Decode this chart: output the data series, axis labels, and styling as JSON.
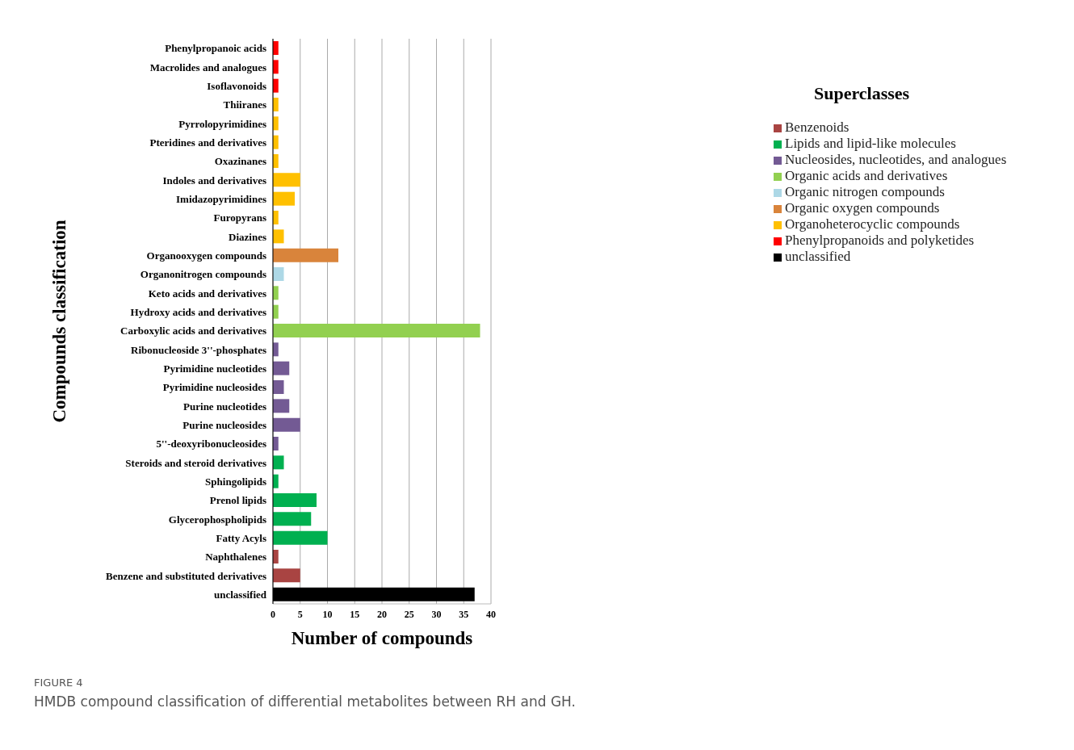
{
  "chart_data": {
    "type": "bar",
    "orientation": "horizontal",
    "stacked": true,
    "xlabel": "Number of compounds",
    "ylabel": "Compounds classification",
    "legend_title": "Superclasses",
    "categories": [
      "Phenylpropanoic acids",
      "Macrolides and analogues",
      "Isoflavonoids",
      "Thiiranes",
      "Pyrrolopyrimidines",
      "Pteridines and derivatives",
      "Oxazinanes",
      "Indoles and derivatives",
      "Imidazopyrimidines",
      "Furopyrans",
      "Diazines",
      "Organooxygen compounds",
      "Organonitrogen compounds",
      "Keto acids and derivatives",
      "Hydroxy acids and derivatives",
      "Carboxylic acids and derivatives",
      "Ribonucleoside 3''-phosphates",
      "Pyrimidine nucleotides",
      "Pyrimidine nucleosides",
      "Purine nucleotides",
      "Purine nucleosides",
      "5''-deoxyribonucleosides",
      "Steroids and steroid derivatives",
      "Sphingolipids",
      "Prenol lipids",
      "Glycerophospholipids",
      "Fatty Acyls",
      "Naphthalenes",
      "Benzene and substituted derivatives",
      "unclassified"
    ],
    "series": [
      {
        "name": "Phenylpropanoids and polyketides",
        "color": "#ff0000",
        "values": [
          1,
          1,
          1,
          null,
          null,
          null,
          null,
          null,
          null,
          null,
          null,
          null,
          null,
          null,
          null,
          null,
          null,
          null,
          null,
          null,
          null,
          null,
          null,
          null,
          null,
          null,
          null,
          null,
          null,
          null
        ]
      },
      {
        "name": "Organoheterocyclic compounds",
        "color": "#ffc000",
        "values": [
          null,
          null,
          null,
          1,
          1,
          1,
          1,
          5,
          4,
          1,
          2,
          null,
          null,
          null,
          null,
          null,
          null,
          null,
          null,
          null,
          null,
          null,
          null,
          null,
          null,
          null,
          null,
          null,
          null,
          null
        ]
      },
      {
        "name": "Organic acids and derivatives",
        "color": "#92d050",
        "values": [
          null,
          null,
          null,
          null,
          null,
          null,
          null,
          null,
          null,
          null,
          null,
          null,
          null,
          1,
          1,
          38,
          null,
          null,
          null,
          null,
          null,
          null,
          null,
          null,
          null,
          null,
          null,
          null,
          null,
          null
        ]
      },
      {
        "name": "Organic oxygen compounds",
        "color": "#d9843b",
        "values": [
          null,
          null,
          null,
          null,
          null,
          null,
          null,
          null,
          null,
          null,
          null,
          12,
          null,
          null,
          null,
          null,
          null,
          null,
          null,
          null,
          null,
          null,
          null,
          null,
          null,
          null,
          null,
          null,
          null,
          null
        ]
      },
      {
        "name": "Organic nitrogen compounds",
        "color": "#add8e6",
        "values": [
          null,
          null,
          null,
          null,
          null,
          null,
          null,
          null,
          null,
          null,
          null,
          null,
          2,
          null,
          null,
          null,
          null,
          null,
          null,
          null,
          null,
          null,
          null,
          null,
          null,
          null,
          null,
          null,
          null,
          null
        ]
      },
      {
        "name": "Nucleosides, nucleotides, and analogues",
        "color": "#735a94",
        "values": [
          null,
          null,
          null,
          null,
          null,
          null,
          null,
          null,
          null,
          null,
          null,
          null,
          null,
          null,
          null,
          null,
          1,
          3,
          2,
          3,
          5,
          1,
          null,
          null,
          null,
          null,
          null,
          null,
          null,
          null
        ]
      },
      {
        "name": "Lipids and lipid-like molecules",
        "color": "#00b050",
        "values": [
          null,
          null,
          null,
          null,
          null,
          null,
          null,
          null,
          null,
          null,
          null,
          null,
          null,
          null,
          null,
          null,
          null,
          null,
          null,
          null,
          null,
          null,
          2,
          1,
          8,
          7,
          10,
          null,
          null,
          null
        ]
      },
      {
        "name": "Benzenoids",
        "color": "#a94442",
        "values": [
          null,
          null,
          null,
          null,
          null,
          null,
          null,
          null,
          null,
          null,
          null,
          null,
          null,
          null,
          null,
          null,
          null,
          null,
          null,
          null,
          null,
          null,
          null,
          null,
          null,
          null,
          null,
          1,
          5,
          null
        ]
      },
      {
        "name": "unclassified",
        "color": "#000000",
        "values": [
          null,
          null,
          null,
          null,
          null,
          null,
          null,
          null,
          null,
          null,
          null,
          null,
          null,
          null,
          null,
          null,
          null,
          null,
          null,
          null,
          null,
          null,
          null,
          null,
          null,
          null,
          null,
          null,
          null,
          37
        ]
      }
    ],
    "xlim": [
      0,
      40
    ],
    "xticks": [
      0,
      5,
      10,
      15,
      20,
      25,
      30,
      35,
      40
    ],
    "grid": "x",
    "legend": "right",
    "annotations": [
      "FIGURE 4",
      "HMDB compound classification of differential metabolites between RH and GH."
    ]
  }
}
